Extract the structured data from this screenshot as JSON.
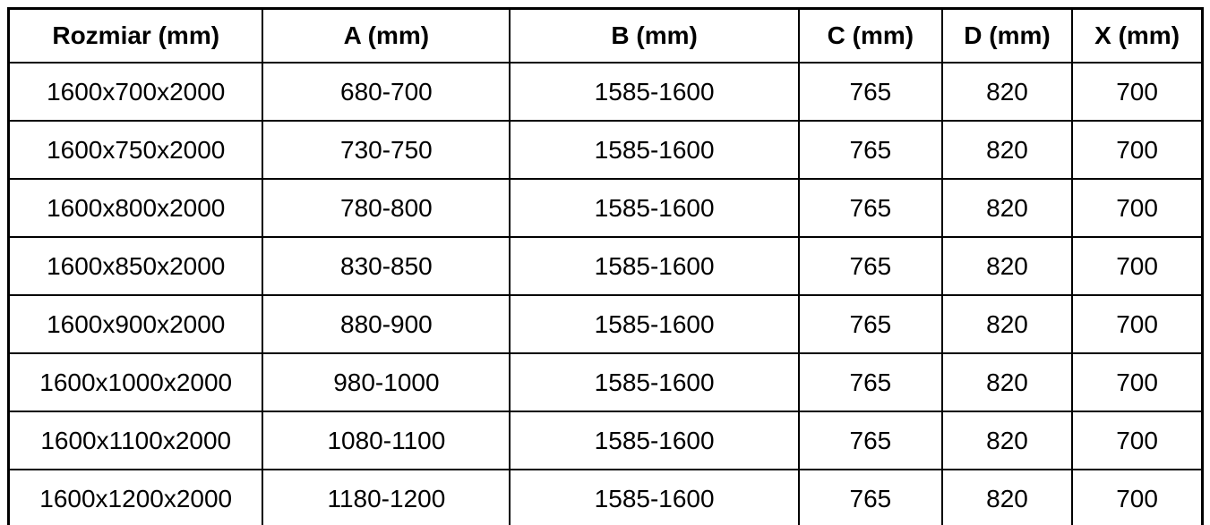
{
  "table": {
    "title": "size-specification-table",
    "columns": [
      {
        "key": "rozmiar",
        "label": "Rozmiar (mm)"
      },
      {
        "key": "a",
        "label": "A (mm)"
      },
      {
        "key": "b",
        "label": "B (mm)"
      },
      {
        "key": "c",
        "label": "C (mm)"
      },
      {
        "key": "d",
        "label": "D (mm)"
      },
      {
        "key": "x",
        "label": "X (mm)"
      }
    ],
    "rows": [
      [
        "1600x700x2000",
        "680-700",
        "1585-1600",
        "765",
        "820",
        "700"
      ],
      [
        "1600x750x2000",
        "730-750",
        "1585-1600",
        "765",
        "820",
        "700"
      ],
      [
        "1600x800x2000",
        "780-800",
        "1585-1600",
        "765",
        "820",
        "700"
      ],
      [
        "1600x850x2000",
        "830-850",
        "1585-1600",
        "765",
        "820",
        "700"
      ],
      [
        "1600x900x2000",
        "880-900",
        "1585-1600",
        "765",
        "820",
        "700"
      ],
      [
        "1600x1000x2000",
        "980-1000",
        "1585-1600",
        "765",
        "820",
        "700"
      ],
      [
        "1600x1100x2000",
        "1080-1100",
        "1585-1600",
        "765",
        "820",
        "700"
      ],
      [
        "1600x1200x2000",
        "1180-1200",
        "1585-1600",
        "765",
        "820",
        "700"
      ]
    ],
    "colors": {
      "border": "#000000",
      "text": "#000000",
      "background": "#ffffff"
    }
  }
}
